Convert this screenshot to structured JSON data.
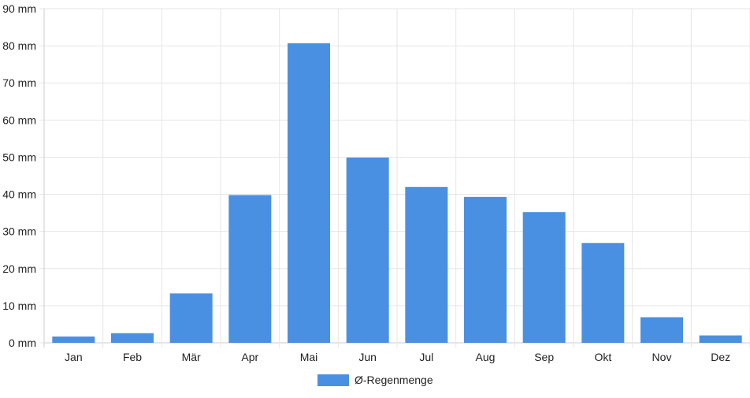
{
  "chart_data": {
    "type": "bar",
    "categories": [
      "Jan",
      "Feb",
      "Mär",
      "Apr",
      "Mai",
      "Jun",
      "Jul",
      "Aug",
      "Sep",
      "Okt",
      "Nov",
      "Dez"
    ],
    "series": [
      {
        "name": "Ø-Regenmenge",
        "values": [
          1.7,
          2.6,
          13.3,
          39.8,
          80.7,
          49.9,
          42.0,
          39.3,
          35.2,
          26.9,
          6.9,
          2.0
        ],
        "color": "#4a90e2"
      }
    ],
    "y_ticks": [
      "0 mm",
      "10 mm",
      "20 mm",
      "30 mm",
      "40 mm",
      "50 mm",
      "60 mm",
      "70 mm",
      "80 mm",
      "90 mm"
    ],
    "ylim": [
      0,
      90
    ],
    "unit": "mm",
    "grid": true,
    "legend_position": "bottom",
    "colors": {
      "grid": "#e6e6e6",
      "axis": "#cccccc",
      "text": "#222222"
    }
  }
}
